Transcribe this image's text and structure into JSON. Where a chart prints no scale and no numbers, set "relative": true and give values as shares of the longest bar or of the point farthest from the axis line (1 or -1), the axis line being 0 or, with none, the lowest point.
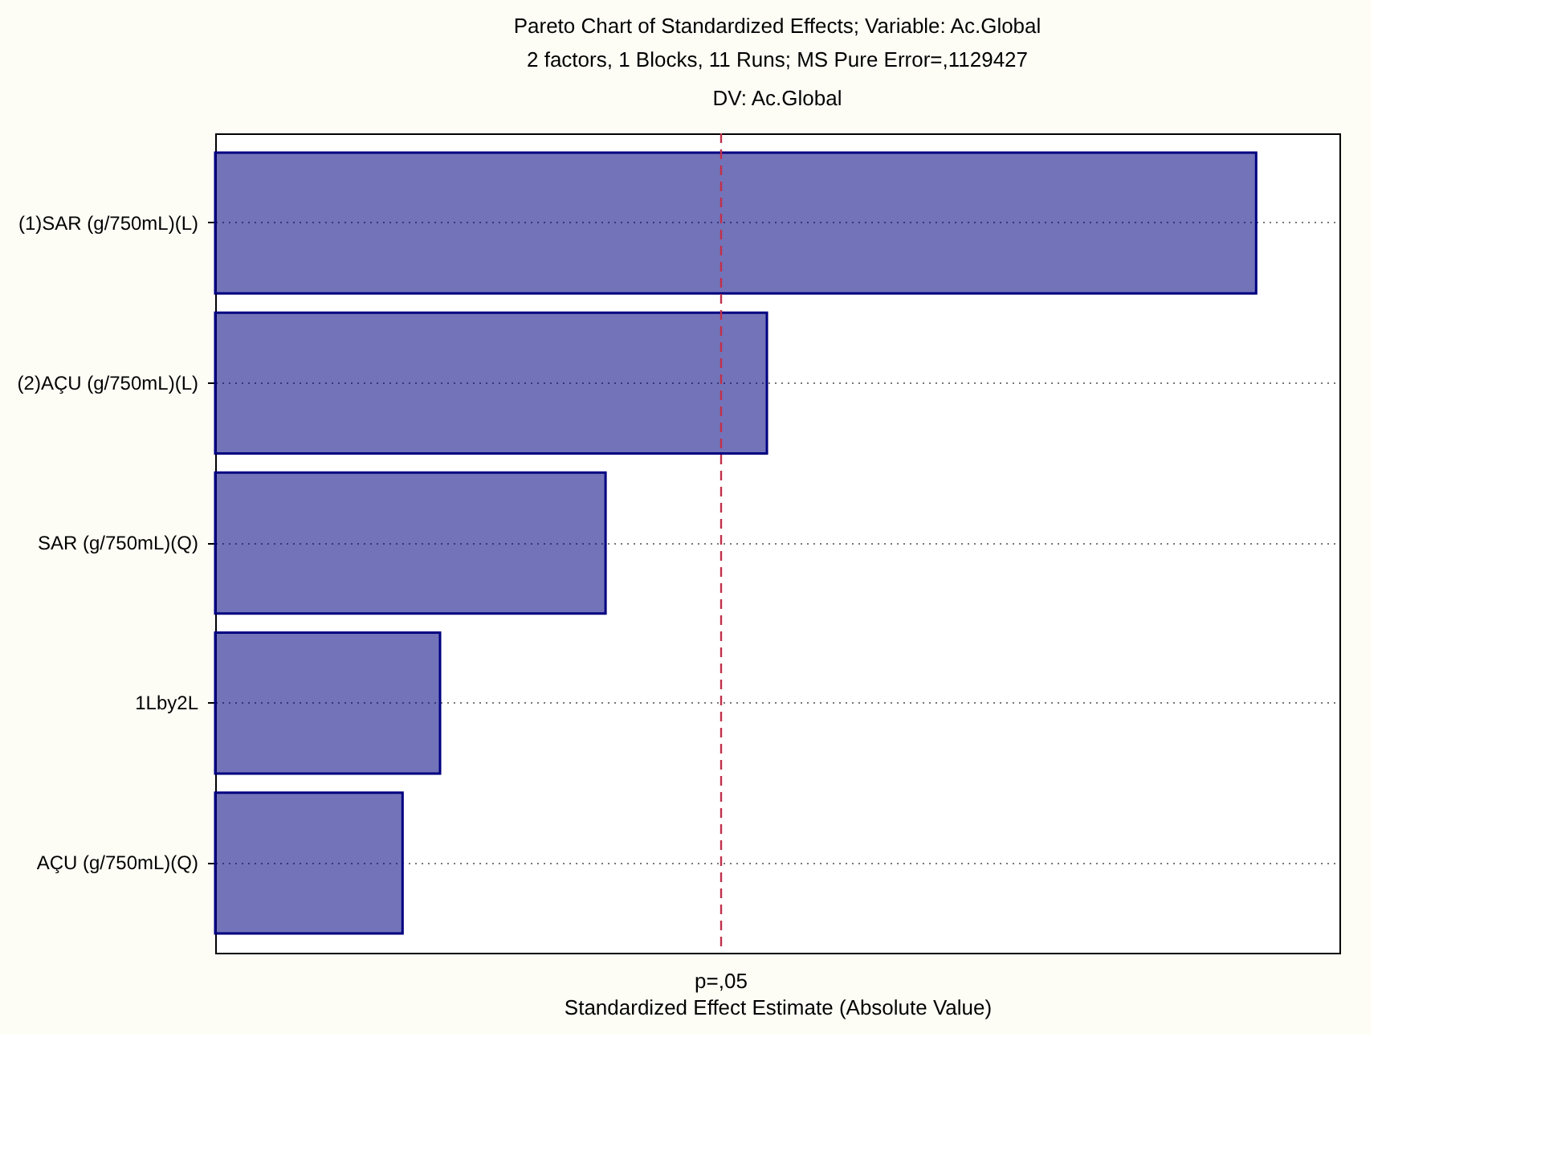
{
  "chart_data": {
    "type": "bar",
    "orientation": "horizontal",
    "relative": true,
    "title": "Pareto Chart of Standardized Effects; Variable: Ac.Global",
    "subtitle": "2 factors, 1 Blocks, 11 Runs; MS Pure Error=,1129427\nDV: Ac.Global",
    "xlabel": "Standardized Effect Estimate (Absolute Value)",
    "categories": [
      "(1)SAR (g/750mL)(L)",
      "(2)AÇU (g/750mL)(L)",
      "SAR (g/750mL)(Q)",
      "1Lby2L",
      "AÇU (g/750mL)(Q)"
    ],
    "values": [
      1,
      0.53,
      0.375,
      0.216,
      0.18
    ],
    "color": "#000080",
    "ref_lines": [
      {
        "axis": "x",
        "value": 0.486,
        "label": "p=,05",
        "color": "#c0304a",
        "line_style": "dashed"
      }
    ],
    "grid": "y"
  }
}
